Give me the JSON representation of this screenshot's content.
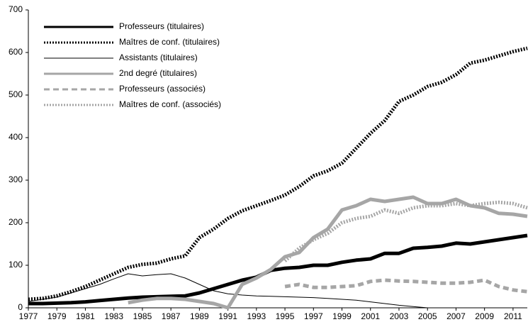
{
  "chart_data": {
    "type": "line",
    "x": [
      1977,
      1978,
      1979,
      1980,
      1981,
      1982,
      1983,
      1984,
      1985,
      1986,
      1987,
      1988,
      1989,
      1990,
      1991,
      1992,
      1993,
      1994,
      1995,
      1996,
      1997,
      1998,
      1999,
      2000,
      2001,
      2002,
      2003,
      2004,
      2005,
      2006,
      2007,
      2008,
      2009,
      2010,
      2011,
      2012
    ],
    "xlim": [
      1977,
      2012
    ],
    "xticks": [
      1977,
      1979,
      1981,
      1983,
      1985,
      1987,
      1989,
      1991,
      1993,
      1995,
      1997,
      1999,
      2001,
      2003,
      2005,
      2007,
      2009,
      2011
    ],
    "ylim": [
      0,
      700
    ],
    "yticks": [
      0,
      100,
      200,
      300,
      400,
      500,
      600,
      700
    ],
    "grid": false,
    "legend": "top-left",
    "series": [
      {
        "name": "Professeurs (titulaires)",
        "color": "#000000",
        "style": "solid",
        "weight": "thick",
        "values": [
          10,
          10,
          11,
          12,
          14,
          17,
          20,
          23,
          25,
          26,
          27,
          28,
          35,
          45,
          55,
          65,
          72,
          88,
          93,
          95,
          100,
          100,
          107,
          112,
          115,
          128,
          128,
          140,
          142,
          145,
          152,
          150,
          155,
          160,
          165,
          170
        ]
      },
      {
        "name": "Maîtres de conf. (titulaires)",
        "color": "#000000",
        "style": "dotted",
        "weight": "thick",
        "values": [
          20,
          22,
          28,
          38,
          50,
          65,
          80,
          95,
          102,
          105,
          115,
          122,
          165,
          185,
          210,
          228,
          240,
          252,
          265,
          285,
          310,
          322,
          340,
          375,
          410,
          440,
          485,
          500,
          520,
          530,
          548,
          575,
          582,
          592,
          602,
          610
        ]
      },
      {
        "name": "Assistants (titulaires)",
        "color": "#000000",
        "style": "solid",
        "weight": "thin",
        "values": [
          15,
          20,
          25,
          35,
          45,
          55,
          68,
          80,
          75,
          78,
          80,
          70,
          55,
          40,
          33,
          30,
          28,
          27,
          26,
          25,
          24,
          22,
          20,
          18,
          14,
          10,
          6,
          3,
          0,
          null,
          null,
          null,
          null,
          null,
          null,
          null
        ]
      },
      {
        "name": "2nd degré (titulaires)",
        "color": "#a6a6a6",
        "style": "solid",
        "weight": "thick",
        "values": [
          null,
          null,
          null,
          null,
          null,
          null,
          null,
          12,
          18,
          22,
          22,
          20,
          15,
          10,
          0,
          55,
          70,
          90,
          120,
          130,
          165,
          185,
          230,
          240,
          255,
          250,
          255,
          260,
          245,
          245,
          255,
          240,
          235,
          222,
          220,
          215
        ]
      },
      {
        "name": "Professeurs (associés)",
        "color": "#a6a6a6",
        "style": "dashed",
        "weight": "thick",
        "values": [
          null,
          null,
          null,
          null,
          null,
          null,
          null,
          null,
          null,
          null,
          null,
          null,
          null,
          null,
          null,
          null,
          null,
          null,
          50,
          55,
          48,
          48,
          50,
          52,
          62,
          65,
          63,
          62,
          60,
          58,
          58,
          60,
          65,
          50,
          42,
          38
        ]
      },
      {
        "name": "Maîtres de conf. (associés)",
        "color": "#a6a6a6",
        "style": "dotted",
        "weight": "thick",
        "values": [
          null,
          null,
          null,
          null,
          null,
          null,
          null,
          null,
          null,
          null,
          null,
          null,
          null,
          null,
          null,
          null,
          null,
          null,
          110,
          140,
          160,
          175,
          200,
          210,
          215,
          230,
          222,
          235,
          240,
          240,
          245,
          240,
          245,
          248,
          245,
          235
        ]
      }
    ]
  }
}
